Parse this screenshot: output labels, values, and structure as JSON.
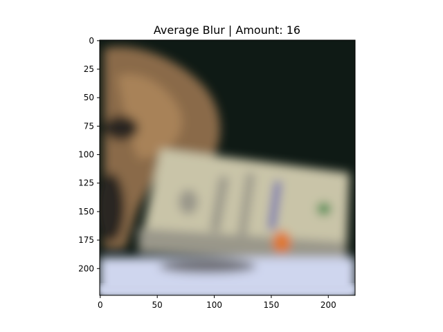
{
  "chart_data": {
    "type": "image",
    "title": "Average Blur | Amount: 16",
    "image_width": 224,
    "image_height": 224,
    "xlim": [
      -0.5,
      223.5
    ],
    "ylim": [
      223.5,
      -0.5
    ],
    "xticks": [
      0,
      50,
      100,
      150,
      200
    ],
    "yticks": [
      0,
      25,
      50,
      75,
      100,
      125,
      150,
      175,
      200
    ],
    "xtick_labels": [
      "0",
      "50",
      "100",
      "150",
      "200"
    ],
    "ytick_labels": [
      "0",
      "25",
      "50",
      "75",
      "100",
      "125",
      "150",
      "175",
      "200"
    ],
    "grid": false,
    "content": {
      "colors": {
        "background_dark": "#0f1a15",
        "dog_fur": "#8a6a48",
        "dog_fur_light": "#a88258",
        "dog_shadow": "#2a2520",
        "banknote": "#c9c4a8",
        "banknote_shade": "#9a978a",
        "banknote_accent_orange": "#e0762a",
        "banknote_accent_green": "#3e8a4a",
        "banknote_accent_blue": "#6a6ab0",
        "surface": "#cfd6ee"
      }
    }
  }
}
